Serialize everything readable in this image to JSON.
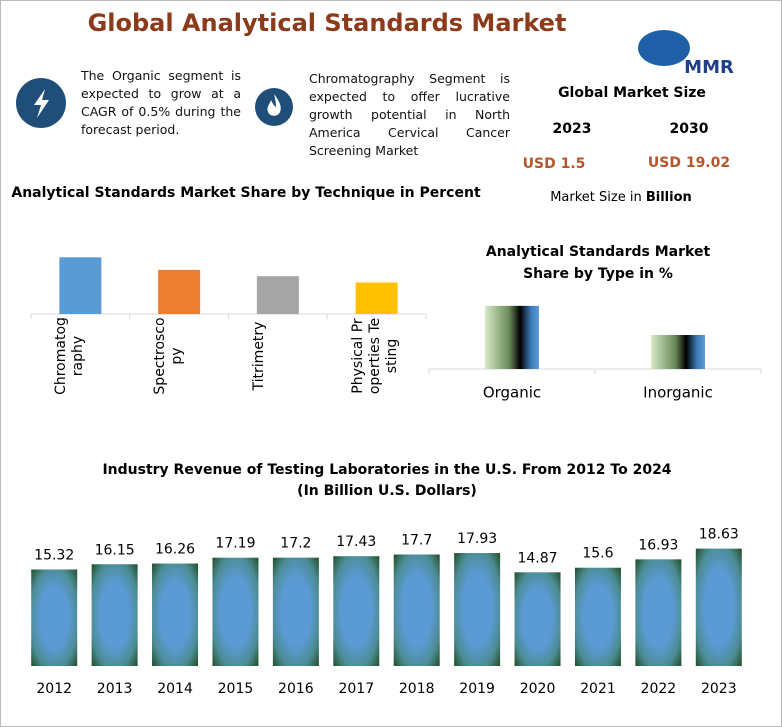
{
  "title": "Global Analytical Standards Market",
  "logo": "MMR",
  "highlights": [
    "The Organic segment is expected to grow at a CAGR of 0.5% during the forecast period.",
    "Chromatography Segment is expected to offer lucrative growth potential in North America Cervical Cancer Screening Market"
  ],
  "market_size": {
    "title": "Global Market Size",
    "years": [
      "2023",
      "2030"
    ],
    "values": [
      "USD 1.5",
      "USD 19.02"
    ],
    "note": "Market Size in",
    "unit": "Billion"
  },
  "chart_data": [
    {
      "type": "bar",
      "title": "Analytical Standards Market Share by Technique in Percent",
      "categories": [
        "Chromatography",
        "Spectroscopy",
        "Titrimetry",
        "Physical Properties Testing"
      ],
      "values": [
        36,
        28,
        24,
        20
      ],
      "colors": [
        "#5b9bd5",
        "#ed7d31",
        "#a5a5a5",
        "#ffc000"
      ],
      "ylim": [
        0,
        40
      ]
    },
    {
      "type": "bar",
      "title": "Analytical Standards Market Share by Type in %",
      "categories": [
        "Organic",
        "Inorganic"
      ],
      "values": [
        65,
        35
      ],
      "ylim": [
        0,
        70
      ]
    },
    {
      "type": "bar",
      "title": "Industry Revenue of Testing Laboratories in the U.S. From 2012 To 2024",
      "subtitle": "(In Billion U.S. Dollars)",
      "categories": [
        "2012",
        "2013",
        "2014",
        "2015",
        "2016",
        "2017",
        "2018",
        "2019",
        "2020",
        "2021",
        "2022",
        "2023"
      ],
      "values": [
        15.32,
        16.15,
        16.26,
        17.19,
        17.2,
        17.43,
        17.7,
        17.93,
        14.87,
        15.6,
        16.93,
        18.63
      ],
      "ylim": [
        0,
        20
      ]
    }
  ]
}
